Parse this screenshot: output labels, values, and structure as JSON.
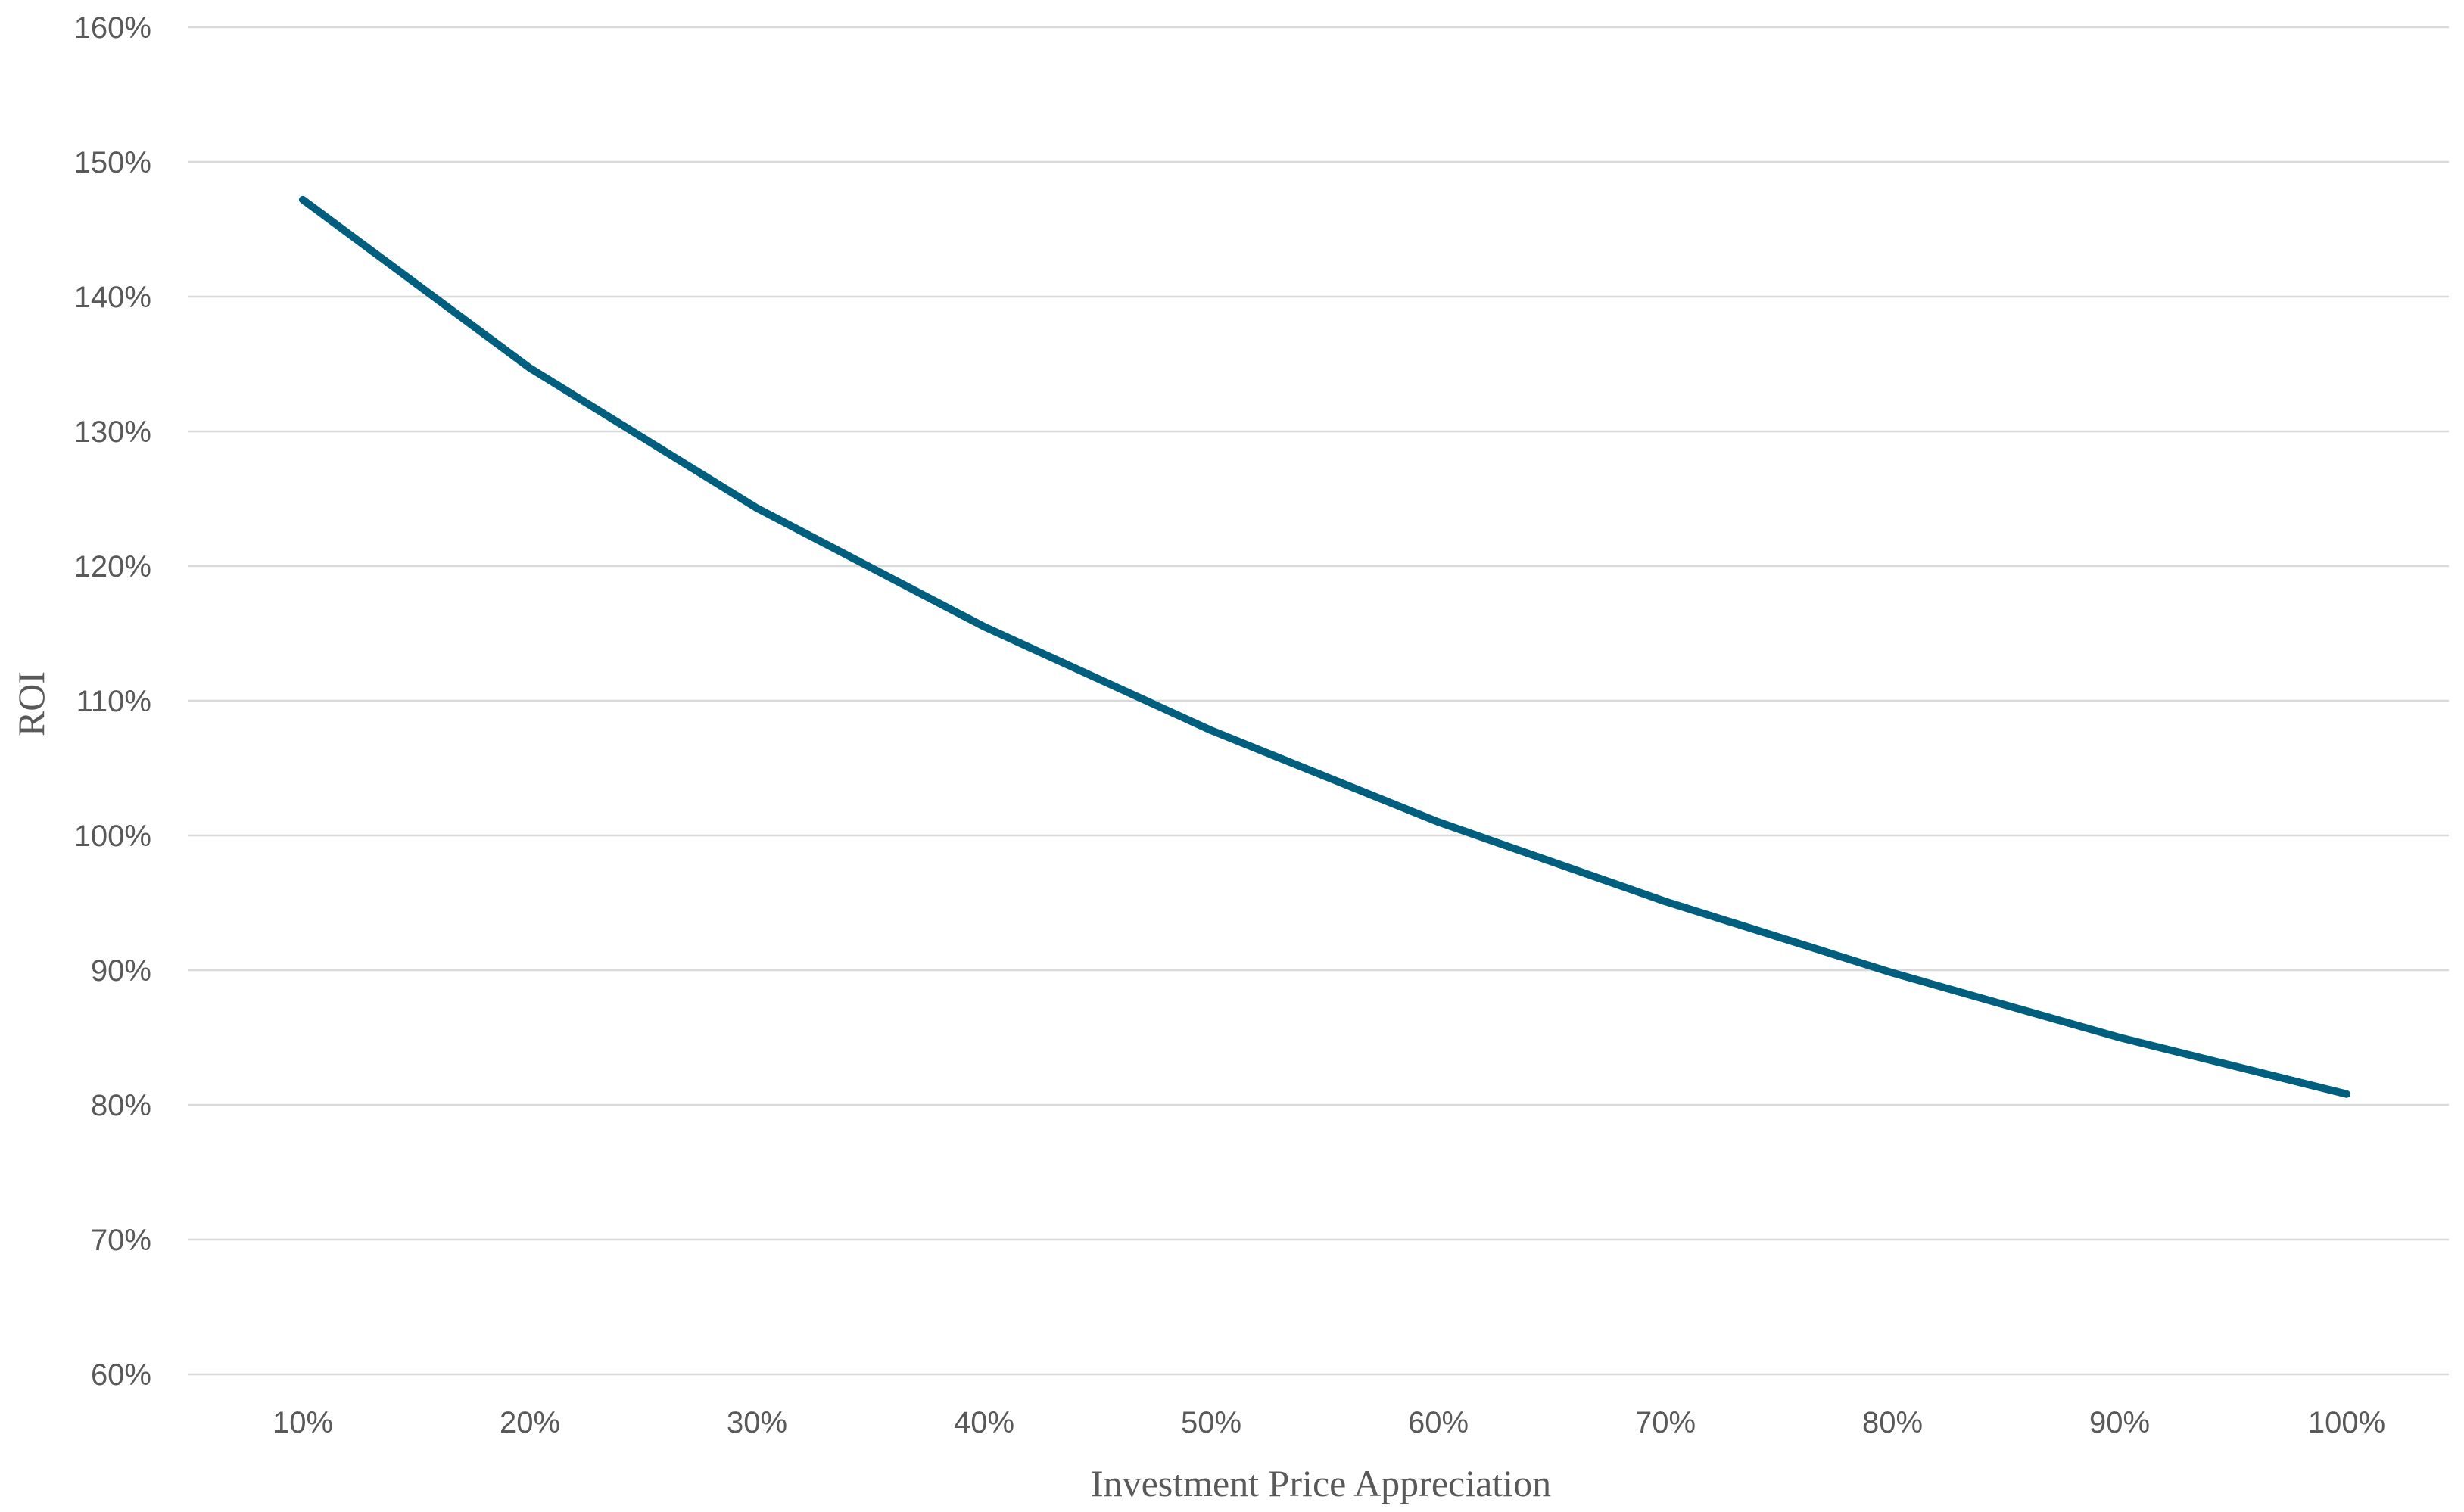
{
  "chart_data": {
    "type": "line",
    "title": "",
    "xlabel": "Investment Price Appreciation",
    "ylabel": "ROI",
    "categories": [
      "10%",
      "20%",
      "30%",
      "40%",
      "50%",
      "60%",
      "70%",
      "80%",
      "90%",
      "100%"
    ],
    "series": [
      {
        "values": [
          147.2,
          134.7,
          124.3,
          115.5,
          107.8,
          101.0,
          95.1,
          89.8,
          85.0,
          80.8
        ],
        "color": "#005f7f"
      }
    ],
    "ylim": [
      60,
      160
    ],
    "ystep": 10,
    "y_tick_suffix": "%",
    "grid": true,
    "legend": "none"
  }
}
